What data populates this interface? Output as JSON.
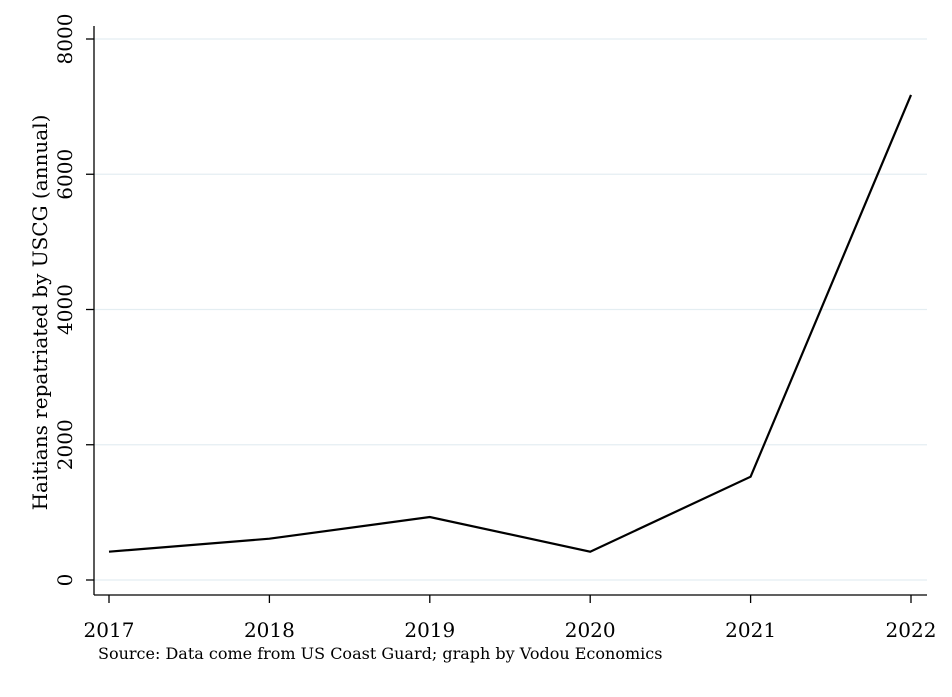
{
  "chart_data": {
    "type": "line",
    "title": "",
    "xlabel": "",
    "ylabel": "Haitians repatriated by USCG (annual)",
    "x": [
      2017,
      2018,
      2019,
      2020,
      2021,
      2022
    ],
    "series": [
      {
        "values": [
          418,
          610,
          932,
          418,
          1527,
          7173
        ]
      }
    ],
    "xticks": [
      "2017",
      "2018",
      "2019",
      "2020",
      "2021",
      "2022"
    ],
    "yticks": [
      0,
      2000,
      4000,
      6000,
      8000
    ],
    "xlim": [
      2016.9,
      2022.1
    ],
    "ylim": [
      -230,
      8200
    ],
    "grid": "horizontal",
    "legend": "none",
    "note": "Source: Data come from US Coast Guard; graph by Vodou Economics",
    "colors": {
      "line": "#000000",
      "grid": "#e4eef2",
      "axis": "#000000",
      "background": "#ffffff"
    }
  }
}
